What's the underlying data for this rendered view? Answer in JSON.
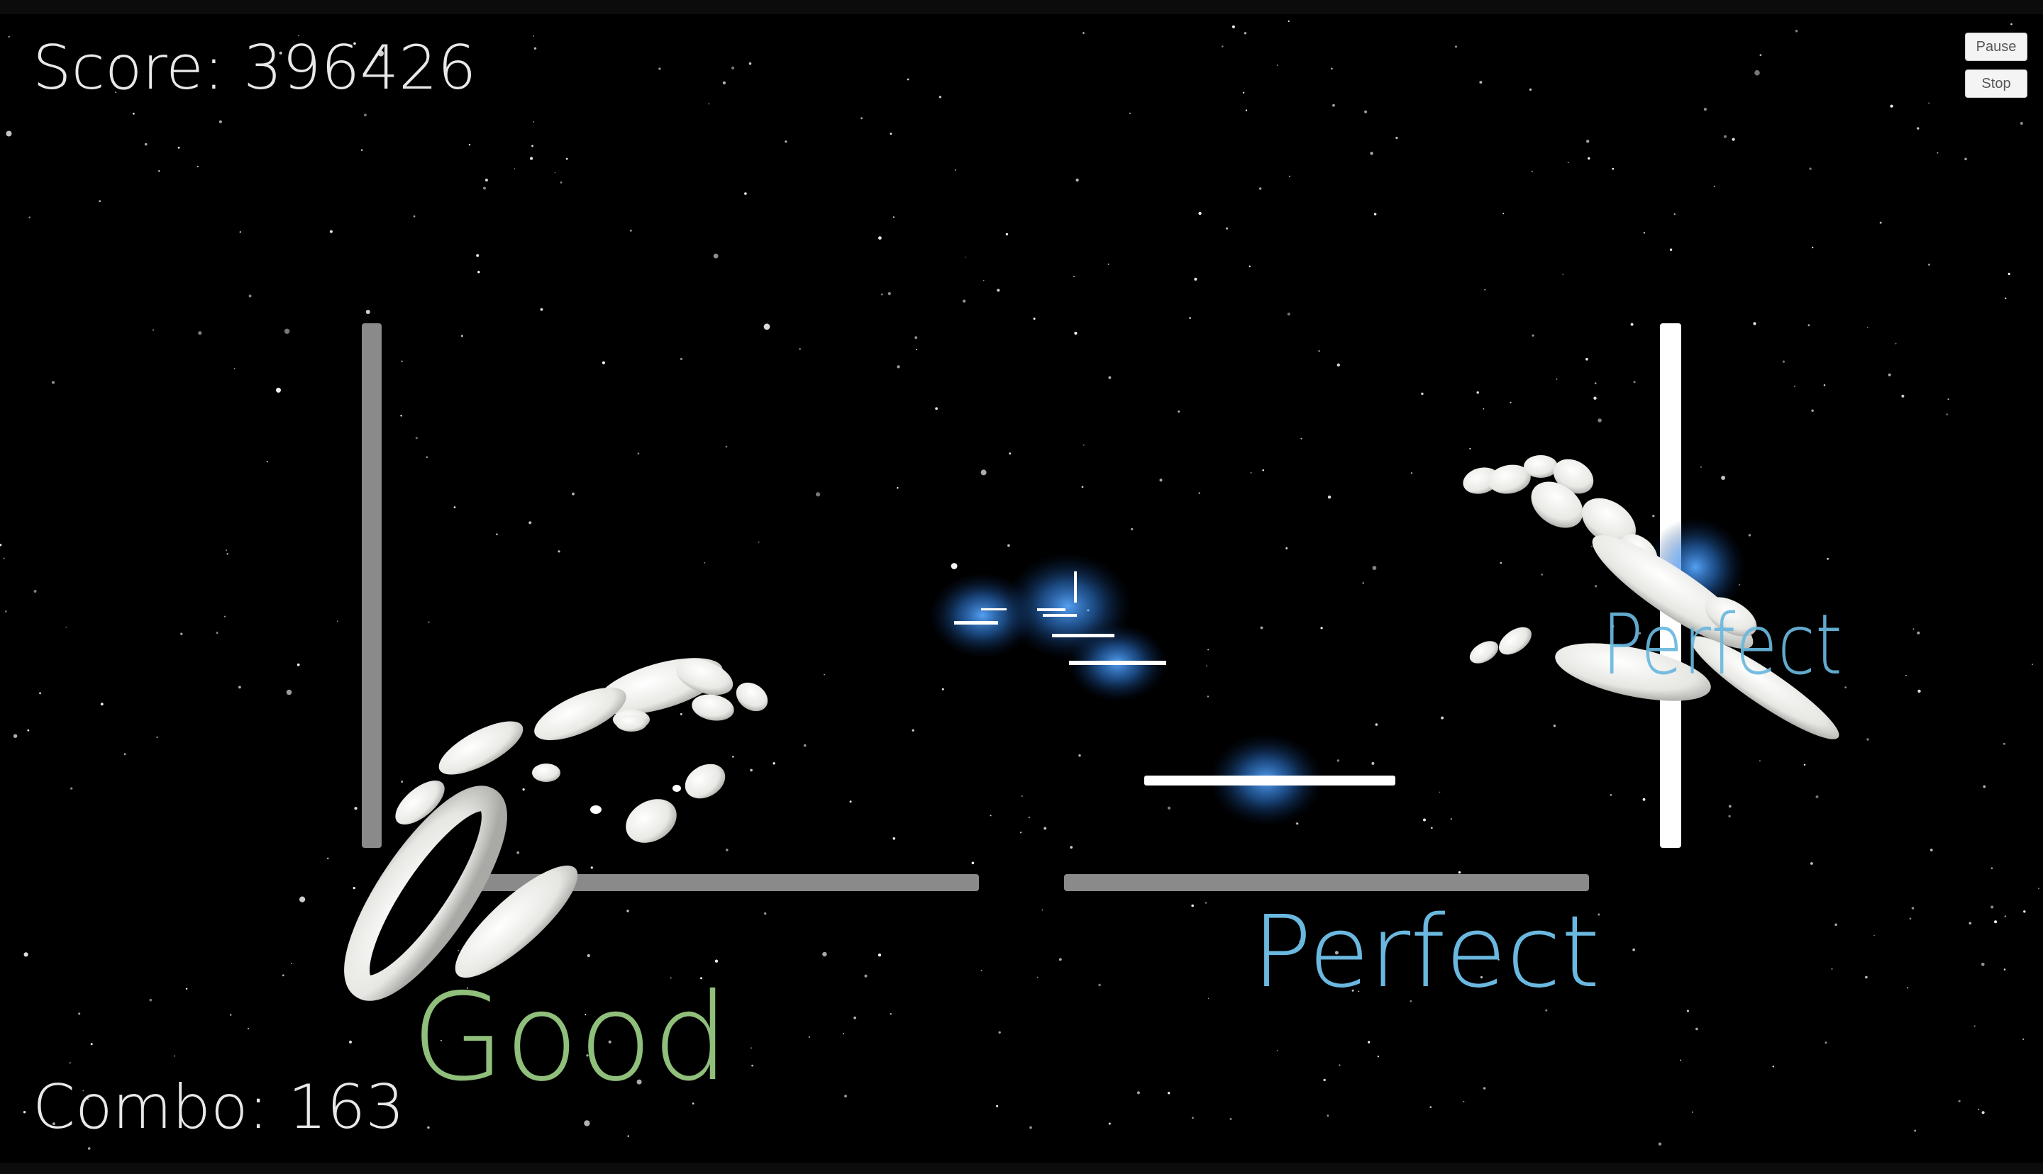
{
  "hud": {
    "score_text": "Score: 396426",
    "combo_text": "Combo: 163"
  },
  "controls": {
    "pause_label": "Pause",
    "stop_label": "Stop"
  },
  "judgements": {
    "left_bottom": "Good",
    "center_bottom": "Perfect",
    "right": "Perfect"
  },
  "colors": {
    "good": "#8fbf7a",
    "perfect": "#6ab8df",
    "lane_inactive": "#8a8a8a",
    "lane_active": "#ffffff",
    "glow": "#3a8fff"
  }
}
